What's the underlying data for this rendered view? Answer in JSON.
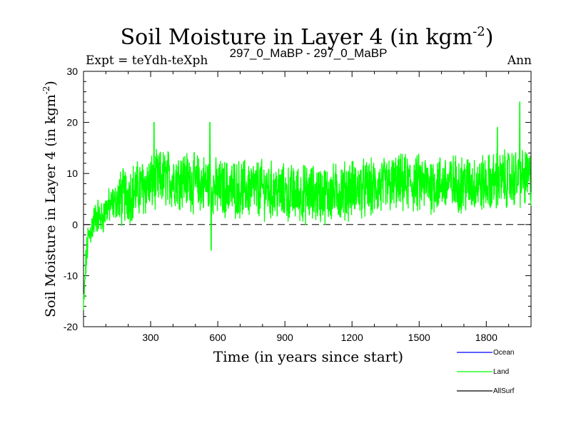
{
  "chart_data": {
    "type": "line",
    "title": "Soil Moisture in Layer 4 (in kgm",
    "title_sup": "-2",
    "title_close": ")",
    "subtitle_left": "Expt = teYdh-teXph",
    "subtitle_center": "297_0_MaBP - 297_0_MaBP",
    "subtitle_right": "Ann",
    "xlabel": "Time (in years since start)",
    "ylabel": "Soil Moisture in Layer 4 (in kgm",
    "ylabel_sup": "-2",
    "ylabel_close": ")",
    "xlim": [
      0,
      2000
    ],
    "ylim": [
      -20,
      30
    ],
    "xticks": [
      300,
      600,
      900,
      1200,
      1500,
      1800
    ],
    "yticks": [
      -20,
      -10,
      0,
      10,
      20,
      30
    ],
    "reference_line": 0,
    "series": [
      {
        "name": "Ocean",
        "color": "#0000ff",
        "values": []
      },
      {
        "name": "Land",
        "color": "#00ff00",
        "values": [
          {
            "x": 0,
            "y": -17
          },
          {
            "x": 10,
            "y": -8
          },
          {
            "x": 20,
            "y": -3
          },
          {
            "x": 40,
            "y": 0
          },
          {
            "x": 60,
            "y": 2
          },
          {
            "x": 80,
            "y": 1
          },
          {
            "x": 100,
            "y": 3
          },
          {
            "x": 130,
            "y": 4
          },
          {
            "x": 160,
            "y": 5
          },
          {
            "x": 200,
            "y": 6
          },
          {
            "x": 250,
            "y": 7
          },
          {
            "x": 300,
            "y": 8
          },
          {
            "x": 350,
            "y": 9
          },
          {
            "x": 400,
            "y": 9
          },
          {
            "x": 450,
            "y": 9
          },
          {
            "x": 500,
            "y": 8
          },
          {
            "x": 550,
            "y": 8
          },
          {
            "x": 600,
            "y": 7
          },
          {
            "x": 700,
            "y": 7
          },
          {
            "x": 800,
            "y": 7
          },
          {
            "x": 900,
            "y": 6
          },
          {
            "x": 1000,
            "y": 6
          },
          {
            "x": 1100,
            "y": 6
          },
          {
            "x": 1200,
            "y": 7
          },
          {
            "x": 1300,
            "y": 7
          },
          {
            "x": 1400,
            "y": 8
          },
          {
            "x": 1500,
            "y": 8
          },
          {
            "x": 1600,
            "y": 8
          },
          {
            "x": 1700,
            "y": 8
          },
          {
            "x": 1800,
            "y": 8
          },
          {
            "x": 1900,
            "y": 9
          },
          {
            "x": 2000,
            "y": 9
          }
        ],
        "noise_amplitude": 5,
        "notable_points": [
          {
            "x": 570,
            "y": -5
          },
          {
            "x": 315,
            "y": 20
          },
          {
            "x": 565,
            "y": 20
          },
          {
            "x": 1950,
            "y": 24
          },
          {
            "x": 1850,
            "y": 19
          }
        ]
      },
      {
        "name": "AllSurf",
        "color": "#000000",
        "values": []
      }
    ],
    "legend": {
      "placement": "bottom-right",
      "entries": [
        "Ocean",
        "Land",
        "AllSurf"
      ]
    }
  }
}
